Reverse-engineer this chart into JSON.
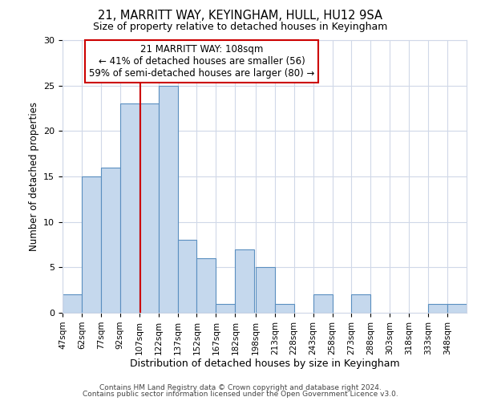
{
  "title1": "21, MARRITT WAY, KEYINGHAM, HULL, HU12 9SA",
  "title2": "Size of property relative to detached houses in Keyingham",
  "xlabel": "Distribution of detached houses by size in Keyingham",
  "ylabel": "Number of detached properties",
  "footer1": "Contains HM Land Registry data © Crown copyright and database right 2024.",
  "footer2": "Contains public sector information licensed under the Open Government Licence v3.0.",
  "bin_labels": [
    "47sqm",
    "62sqm",
    "77sqm",
    "92sqm",
    "107sqm",
    "122sqm",
    "137sqm",
    "152sqm",
    "167sqm",
    "182sqm",
    "198sqm",
    "213sqm",
    "228sqm",
    "243sqm",
    "258sqm",
    "273sqm",
    "288sqm",
    "303sqm",
    "318sqm",
    "333sqm",
    "348sqm"
  ],
  "bin_edges": [
    47,
    62,
    77,
    92,
    107,
    122,
    137,
    152,
    167,
    182,
    198,
    213,
    228,
    243,
    258,
    273,
    288,
    303,
    318,
    333,
    348,
    363
  ],
  "counts": [
    2,
    15,
    16,
    23,
    23,
    25,
    8,
    6,
    1,
    7,
    5,
    1,
    0,
    2,
    0,
    2,
    0,
    0,
    0,
    1,
    1
  ],
  "bar_color": "#c5d8ed",
  "bar_edge_color": "#5a8fc0",
  "property_size": 108,
  "vline_color": "#cc0000",
  "annotation_line1": "21 MARRITT WAY: 108sqm",
  "annotation_line2": "← 41% of detached houses are smaller (56)",
  "annotation_line3": "59% of semi-detached houses are larger (80) →",
  "annotation_box_edge": "#cc0000",
  "annotation_box_face": "#ffffff",
  "ylim": [
    0,
    30
  ],
  "yticks": [
    0,
    5,
    10,
    15,
    20,
    25,
    30
  ],
  "bg_color": "#ffffff",
  "grid_color": "#d0d8e8"
}
